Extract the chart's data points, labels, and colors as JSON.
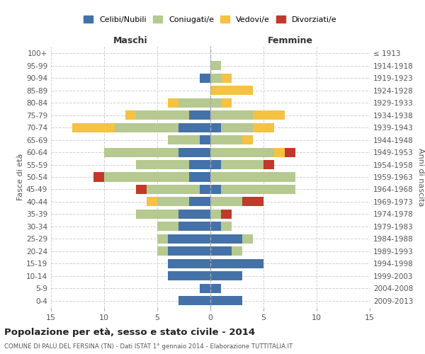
{
  "age_groups": [
    "100+",
    "95-99",
    "90-94",
    "85-89",
    "80-84",
    "75-79",
    "70-74",
    "65-69",
    "60-64",
    "55-59",
    "50-54",
    "45-49",
    "40-44",
    "35-39",
    "30-34",
    "25-29",
    "20-24",
    "15-19",
    "10-14",
    "5-9",
    "0-4"
  ],
  "birth_years": [
    "≤ 1913",
    "1914-1918",
    "1919-1923",
    "1924-1928",
    "1929-1933",
    "1934-1938",
    "1939-1943",
    "1944-1948",
    "1949-1953",
    "1954-1958",
    "1959-1963",
    "1964-1968",
    "1969-1973",
    "1974-1978",
    "1979-1983",
    "1984-1988",
    "1989-1993",
    "1994-1998",
    "1999-2003",
    "2004-2008",
    "2009-2013"
  ],
  "males": {
    "celibi": [
      0,
      0,
      1,
      0,
      0,
      2,
      3,
      1,
      3,
      2,
      2,
      1,
      2,
      3,
      3,
      4,
      4,
      4,
      4,
      1,
      3
    ],
    "coniugati": [
      0,
      0,
      0,
      0,
      3,
      5,
      6,
      3,
      7,
      5,
      8,
      5,
      3,
      4,
      2,
      1,
      1,
      0,
      0,
      0,
      0
    ],
    "vedovi": [
      0,
      0,
      0,
      0,
      1,
      1,
      4,
      0,
      0,
      0,
      0,
      0,
      1,
      0,
      0,
      0,
      0,
      0,
      0,
      0,
      0
    ],
    "divorziati": [
      0,
      0,
      0,
      0,
      0,
      0,
      0,
      0,
      0,
      0,
      1,
      1,
      0,
      0,
      0,
      0,
      0,
      0,
      0,
      0,
      0
    ]
  },
  "females": {
    "nubili": [
      0,
      0,
      0,
      0,
      0,
      0,
      1,
      0,
      0,
      1,
      0,
      1,
      0,
      0,
      1,
      3,
      2,
      5,
      3,
      1,
      3
    ],
    "coniugate": [
      0,
      1,
      1,
      0,
      1,
      4,
      3,
      3,
      6,
      4,
      8,
      7,
      3,
      1,
      1,
      1,
      1,
      0,
      0,
      0,
      0
    ],
    "vedove": [
      0,
      0,
      1,
      4,
      1,
      3,
      2,
      1,
      1,
      0,
      0,
      0,
      0,
      0,
      0,
      0,
      0,
      0,
      0,
      0,
      0
    ],
    "divorziate": [
      0,
      0,
      0,
      0,
      0,
      0,
      0,
      0,
      1,
      1,
      0,
      0,
      2,
      1,
      0,
      0,
      0,
      0,
      0,
      0,
      0
    ]
  },
  "colors": {
    "celibi": "#4472a8",
    "coniugati": "#b5c990",
    "vedovi": "#f5c242",
    "divorziati": "#c0392b"
  },
  "title": "Popolazione per età, sesso e stato civile - 2014",
  "subtitle": "COMUNE DI PALÙ DEL FERSINA (TN) - Dati ISTAT 1° gennaio 2014 - Elaborazione TUTTITALIA.IT",
  "xlabel_left": "Maschi",
  "xlabel_right": "Femmine",
  "ylabel_left": "Fasce di età",
  "ylabel_right": "Anni di nascita",
  "xlim": 15,
  "legend_labels": [
    "Celibi/Nubili",
    "Coniugati/e",
    "Vedovi/e",
    "Divorziati/e"
  ],
  "background_color": "#ffffff",
  "grid_color": "#cccccc"
}
